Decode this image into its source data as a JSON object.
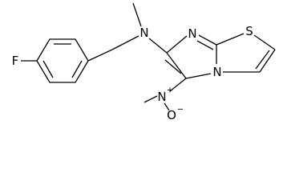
{
  "molecule": {
    "atoms": [
      {
        "label": "F"
      },
      {
        "label": "N"
      },
      {
        "label": "N"
      },
      {
        "label": "S"
      },
      {
        "label": "N"
      },
      {
        "label": "N",
        "charge": "+"
      },
      {
        "label": "O",
        "charge": "−"
      }
    ]
  }
}
